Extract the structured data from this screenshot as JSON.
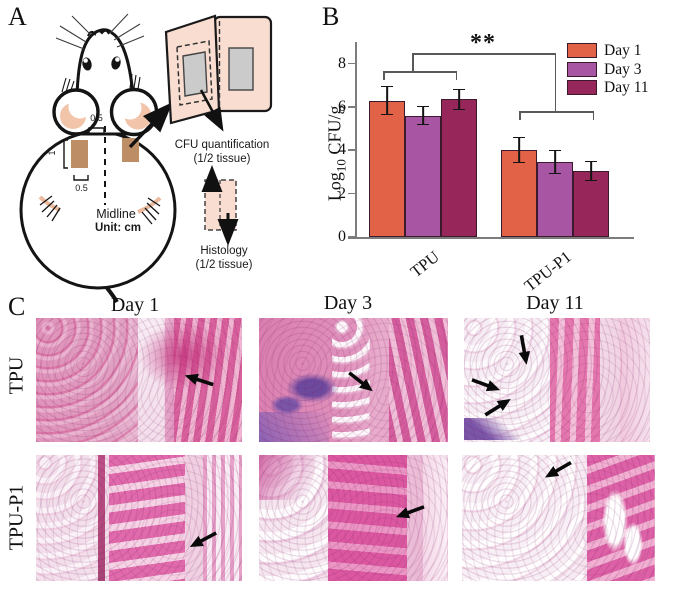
{
  "panels": {
    "a_label": "A",
    "b_label": "B",
    "c_label": "C"
  },
  "panel_a": {
    "dim_top": "0.5",
    "dim_left": "1",
    "dim_bottom": "0.5",
    "midline_label": "Midline",
    "unit_label": "Unit: cm",
    "cfu_line1": "CFU quantification",
    "cfu_line2": "(1/2 tissue)",
    "hist_line1": "Histology",
    "hist_line2": "(1/2 tissue)"
  },
  "chart_data": {
    "type": "bar",
    "title": "",
    "categories": [
      "TPU",
      "TPU-P1"
    ],
    "series": [
      {
        "name": "Day 1",
        "color": "#E16246",
        "values": [
          6.3,
          4.0
        ],
        "errors": [
          0.65,
          0.6
        ]
      },
      {
        "name": "Day 3",
        "color": "#A855A4",
        "values": [
          5.6,
          3.45
        ],
        "errors": [
          0.45,
          0.55
        ]
      },
      {
        "name": "Day 11",
        "color": "#97265A",
        "values": [
          6.35,
          3.05
        ],
        "errors": [
          0.5,
          0.45
        ]
      }
    ],
    "ylabel": "Log10 CFU/g",
    "ylabel_parts": {
      "main": "Log",
      "sub": "10",
      "rest": " CFU/g"
    },
    "yticks": [
      0,
      2,
      4,
      6,
      8
    ],
    "ylim": [
      0,
      9
    ],
    "grid": false,
    "legend_position": "top-right",
    "significance": "**",
    "bar_outline_color": "#3c1a2d",
    "axis_color": "#7c7c7c"
  },
  "panel_c": {
    "columns": [
      "Day 1",
      "Day 3",
      "Day 11"
    ],
    "rows": [
      "TPU",
      "TPU-P1"
    ]
  }
}
